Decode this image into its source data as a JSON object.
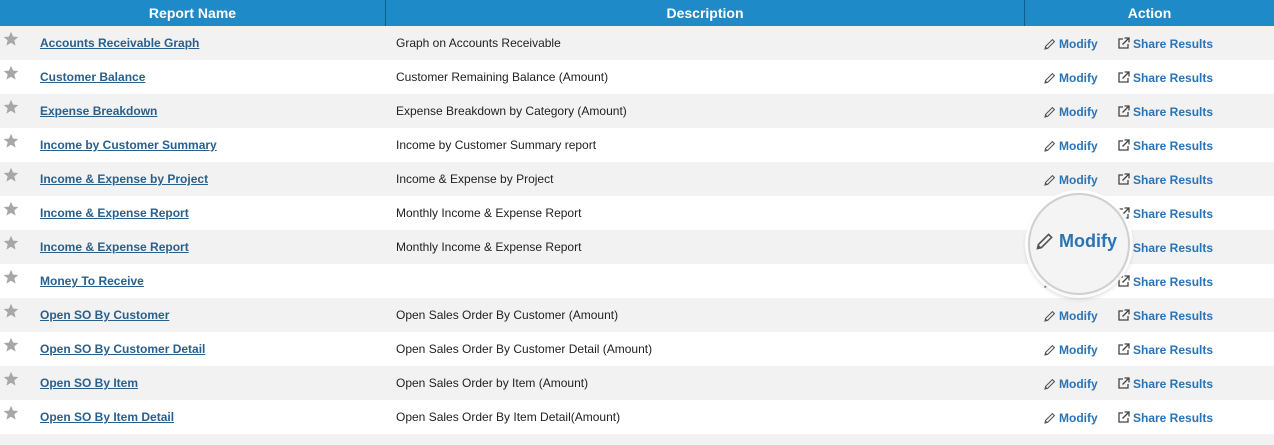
{
  "header": {
    "report_name": "Report Name",
    "description": "Description",
    "action": "Action"
  },
  "actions": {
    "modify_label": "Modify",
    "share_label": "Share Results"
  },
  "rows": [
    {
      "name": "Accounts Receivable Graph",
      "description": "Graph on Accounts Receivable"
    },
    {
      "name": "Customer Balance",
      "description": "Customer Remaining Balance (Amount)"
    },
    {
      "name": "Expense Breakdown",
      "description": "Expense Breakdown by Category (Amount)"
    },
    {
      "name": "Income by Customer Summary",
      "description": "Income by Customer Summary report"
    },
    {
      "name": "Income & Expense by Project",
      "description": "Income & Expense by Project"
    },
    {
      "name": "Income & Expense Report",
      "description": "Monthly Income & Expense Report"
    },
    {
      "name": "Income & Expense Report",
      "description": "Monthly Income & Expense Report"
    },
    {
      "name": "Money To Receive",
      "description": ""
    },
    {
      "name": "Open SO By Customer",
      "description": "Open Sales Order By Customer (Amount)"
    },
    {
      "name": "Open SO By Customer Detail",
      "description": "Open Sales Order By Customer Detail (Amount)"
    },
    {
      "name": "Open SO By Item",
      "description": "Open Sales Order by Item (Amount)"
    },
    {
      "name": "Open SO By Item Detail",
      "description": "Open Sales Order By Item Detail(Amount)"
    }
  ],
  "magnifier": {
    "label": "Modify",
    "icon": "pencil-icon"
  },
  "colors": {
    "header_bg": "#1e8ac8",
    "link": "#2a5f8c",
    "action": "#2a73b5",
    "row_alt": "#f2f2f2"
  }
}
